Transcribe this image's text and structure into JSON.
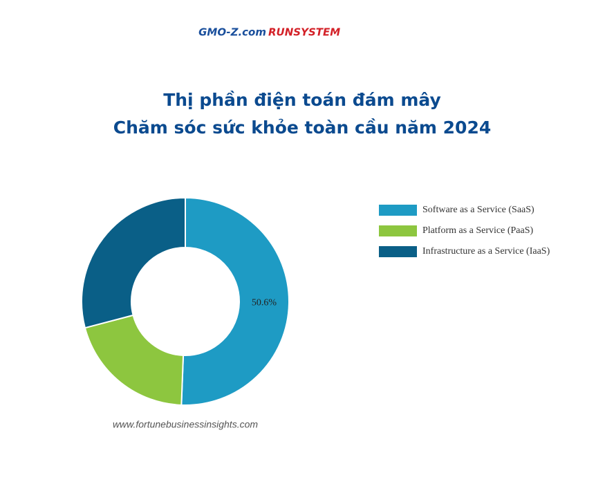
{
  "header": {
    "logo": [
      "GMO-Z.com",
      "RUNSYSTEM"
    ]
  },
  "chart_data": {
    "type": "donut",
    "title": [
      "Thị phần điện toán đám mây",
      "Chăm sóc sức khỏe toàn cầu năm 2024"
    ],
    "categories": [
      "Software as a Service (SaaS)",
      "Platform as a Service (PaaS)",
      "Infrastructure as a Service (IaaS)"
    ],
    "values": [
      50.6,
      20.3,
      29.1
    ],
    "value_labels": [
      "50.6%",
      null,
      null
    ],
    "colors": [
      "#1e9bc4",
      "#8dc63f",
      "#0a5f87"
    ],
    "legend": "right"
  },
  "source": "www.fortunebusinessinsights.com"
}
